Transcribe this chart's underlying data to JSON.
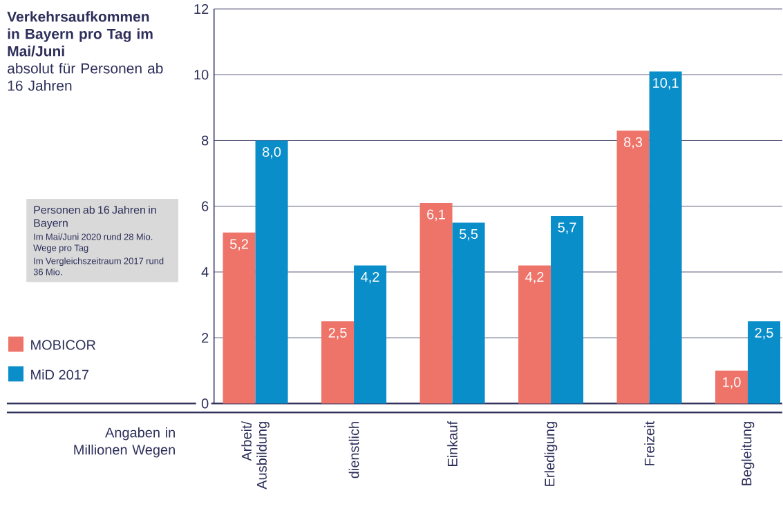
{
  "chart_data": {
    "type": "bar",
    "title": "Verkehrsaufkommen in Bayern pro Tag im Mai/Juni",
    "subtitle": "absolut für Personen ab 16 Jahren",
    "ylabel": "Angaben in Millionen Wegen",
    "categories": [
      "Arbeit/ Ausbildung",
      "dienstlich",
      "Einkauf",
      "Erledigung",
      "Freizeit",
      "Begleitung"
    ],
    "series": [
      {
        "name": "MOBICOR",
        "color": "#ee746a",
        "values": [
          5.2,
          2.5,
          6.1,
          4.2,
          8.3,
          1.0
        ],
        "value_labels": [
          "5,2",
          "2,5",
          "6,1",
          "4,2",
          "8,3",
          "1,0"
        ]
      },
      {
        "name": "MiD 2017",
        "color": "#0a8ec9",
        "values": [
          8.0,
          4.2,
          5.5,
          5.7,
          10.1,
          2.5
        ],
        "value_labels": [
          "8,0",
          "4,2",
          "5,5",
          "5,7",
          "10,1",
          "2,5"
        ]
      }
    ],
    "ylim": [
      0,
      12
    ],
    "yticks": [
      0,
      2,
      4,
      6,
      8,
      10,
      12
    ],
    "grid": "y",
    "legend": "left",
    "annotations": [
      "Personen ab 16 Jahren in Bayern",
      "Im Mai/Juni 2020 rund 28 Mio. Wege pro Tag",
      "Im Vergleichszeitraum 2017 rund 36 Mio."
    ]
  }
}
